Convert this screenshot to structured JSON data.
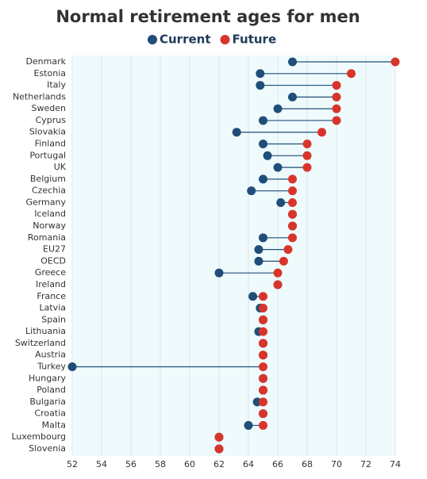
{
  "chart_data": {
    "type": "dumbbell",
    "title": "Normal retirement ages for men",
    "categories": [
      "Denmark",
      "Estonia",
      "Italy",
      "Netherlands",
      "Sweden",
      "Cyprus",
      "Slovakia",
      "Finland",
      "Portugal",
      "UK",
      "Belgium",
      "Czechia",
      "Germany",
      "Iceland",
      "Norway",
      "Romania",
      "EU27",
      "OECD",
      "Greece",
      "Ireland",
      "France",
      "Latvia",
      "Spain",
      "Lithuania",
      "Switzerland",
      "Austria",
      "Turkey",
      "Hungary",
      "Poland",
      "Bulgaria",
      "Croatia",
      "Malta",
      "Luxembourg",
      "Slovenia"
    ],
    "series": [
      {
        "name": "Current",
        "color": "#1f4e79",
        "values": [
          67,
          64.8,
          64.8,
          67,
          66,
          65,
          63.2,
          65,
          65.3,
          66,
          65,
          64.2,
          66.2,
          67,
          67,
          65,
          64.7,
          64.7,
          62,
          66,
          64.3,
          64.8,
          65,
          64.7,
          65,
          65,
          52,
          65,
          65,
          64.6,
          65,
          64,
          62,
          62
        ]
      },
      {
        "name": "Future",
        "color": "#d9342b",
        "values": [
          74,
          71,
          70,
          70,
          70,
          70,
          69,
          68,
          68,
          68,
          67,
          67,
          67,
          67,
          67,
          67,
          66.7,
          66.4,
          66,
          66,
          65,
          65,
          65,
          65,
          65,
          65,
          65,
          65,
          65,
          65,
          65,
          65,
          62,
          62
        ]
      }
    ],
    "xlim": [
      52,
      74
    ],
    "xticks": [
      52,
      54,
      56,
      58,
      60,
      62,
      64,
      66,
      68,
      70,
      72,
      74
    ],
    "grid": true
  }
}
